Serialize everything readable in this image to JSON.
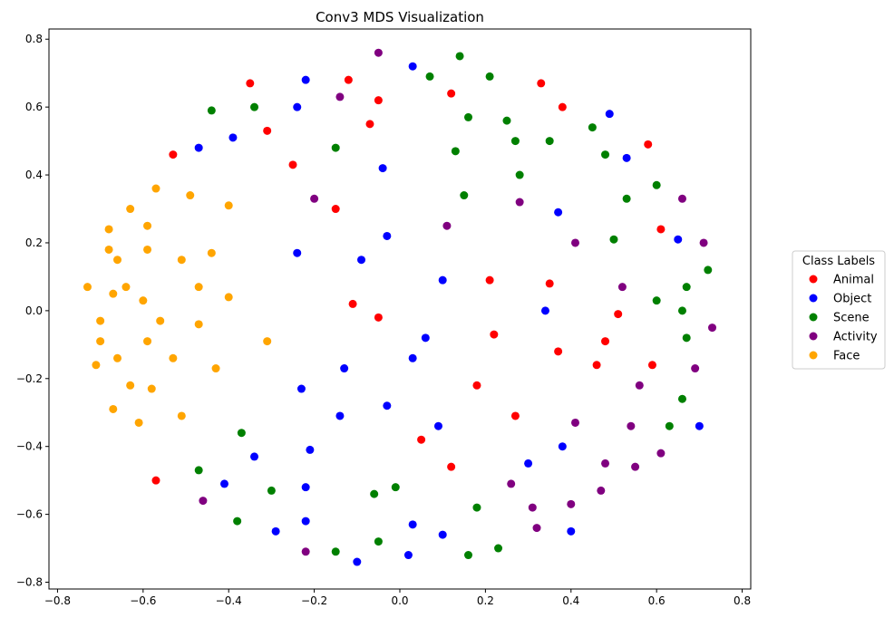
{
  "chart_data": {
    "type": "scatter",
    "title": "Conv3 MDS Visualization",
    "xlabel": "",
    "ylabel": "",
    "xlim": [
      -0.82,
      0.82
    ],
    "ylim": [
      -0.82,
      0.83
    ],
    "xticks": [
      "−0.8",
      "−0.6",
      "−0.4",
      "−0.2",
      "0.0",
      "0.2",
      "0.4",
      "0.6",
      "0.8"
    ],
    "xtick_values": [
      -0.8,
      -0.6,
      -0.4,
      -0.2,
      0.0,
      0.2,
      0.4,
      0.6,
      0.8
    ],
    "yticks": [
      "−0.8",
      "−0.6",
      "−0.4",
      "−0.2",
      "0.0",
      "0.2",
      "0.4",
      "0.6",
      "0.8"
    ],
    "ytick_values": [
      -0.8,
      -0.6,
      -0.4,
      -0.2,
      0.0,
      0.2,
      0.4,
      0.6,
      0.8
    ],
    "grid": false,
    "legend": {
      "title": "Class Labels",
      "placement": "outside-right"
    },
    "series": [
      {
        "name": "Animal",
        "color": "#ff0000",
        "points": [
          [
            -0.35,
            0.67
          ],
          [
            -0.12,
            0.68
          ],
          [
            -0.05,
            0.62
          ],
          [
            0.12,
            0.64
          ],
          [
            0.33,
            0.67
          ],
          [
            0.38,
            0.6
          ],
          [
            -0.31,
            0.53
          ],
          [
            -0.07,
            0.55
          ],
          [
            -0.53,
            0.46
          ],
          [
            -0.25,
            0.43
          ],
          [
            0.58,
            0.49
          ],
          [
            -0.15,
            0.3
          ],
          [
            0.61,
            0.24
          ],
          [
            -0.11,
            0.02
          ],
          [
            0.21,
            0.09
          ],
          [
            0.35,
            0.08
          ],
          [
            -0.05,
            -0.02
          ],
          [
            0.51,
            -0.01
          ],
          [
            0.22,
            -0.07
          ],
          [
            0.48,
            -0.09
          ],
          [
            0.37,
            -0.12
          ],
          [
            0.46,
            -0.16
          ],
          [
            0.59,
            -0.16
          ],
          [
            0.18,
            -0.22
          ],
          [
            0.27,
            -0.31
          ],
          [
            0.05,
            -0.38
          ],
          [
            0.12,
            -0.46
          ],
          [
            -0.57,
            -0.5
          ]
        ]
      },
      {
        "name": "Object",
        "color": "#0000ff",
        "points": [
          [
            -0.22,
            0.68
          ],
          [
            0.03,
            0.72
          ],
          [
            -0.24,
            0.6
          ],
          [
            0.49,
            0.58
          ],
          [
            -0.47,
            0.48
          ],
          [
            -0.39,
            0.51
          ],
          [
            0.53,
            0.45
          ],
          [
            -0.04,
            0.42
          ],
          [
            0.37,
            0.29
          ],
          [
            -0.03,
            0.22
          ],
          [
            0.65,
            0.21
          ],
          [
            -0.24,
            0.17
          ],
          [
            -0.09,
            0.15
          ],
          [
            0.1,
            0.09
          ],
          [
            0.34,
            0.0
          ],
          [
            0.06,
            -0.08
          ],
          [
            0.03,
            -0.14
          ],
          [
            -0.13,
            -0.17
          ],
          [
            -0.23,
            -0.23
          ],
          [
            -0.03,
            -0.28
          ],
          [
            -0.14,
            -0.31
          ],
          [
            0.09,
            -0.34
          ],
          [
            0.7,
            -0.34
          ],
          [
            0.38,
            -0.4
          ],
          [
            -0.21,
            -0.41
          ],
          [
            -0.34,
            -0.43
          ],
          [
            0.3,
            -0.45
          ],
          [
            -0.41,
            -0.51
          ],
          [
            -0.22,
            -0.52
          ],
          [
            0.03,
            -0.63
          ],
          [
            -0.22,
            -0.62
          ],
          [
            -0.29,
            -0.65
          ],
          [
            0.1,
            -0.66
          ],
          [
            0.4,
            -0.65
          ],
          [
            0.02,
            -0.72
          ],
          [
            -0.1,
            -0.74
          ]
        ]
      },
      {
        "name": "Scene",
        "color": "#008000",
        "points": [
          [
            0.14,
            0.75
          ],
          [
            0.07,
            0.69
          ],
          [
            0.21,
            0.69
          ],
          [
            -0.44,
            0.59
          ],
          [
            -0.34,
            0.6
          ],
          [
            0.16,
            0.57
          ],
          [
            0.25,
            0.56
          ],
          [
            0.45,
            0.54
          ],
          [
            0.27,
            0.5
          ],
          [
            0.35,
            0.5
          ],
          [
            -0.15,
            0.48
          ],
          [
            0.13,
            0.47
          ],
          [
            0.48,
            0.46
          ],
          [
            0.28,
            0.4
          ],
          [
            0.6,
            0.37
          ],
          [
            0.15,
            0.34
          ],
          [
            0.53,
            0.33
          ],
          [
            0.5,
            0.21
          ],
          [
            0.72,
            0.12
          ],
          [
            0.67,
            0.07
          ],
          [
            0.6,
            0.03
          ],
          [
            0.66,
            0.0
          ],
          [
            0.67,
            -0.08
          ],
          [
            0.66,
            -0.26
          ],
          [
            -0.37,
            -0.36
          ],
          [
            0.63,
            -0.34
          ],
          [
            -0.47,
            -0.47
          ],
          [
            -0.3,
            -0.53
          ],
          [
            -0.06,
            -0.54
          ],
          [
            -0.01,
            -0.52
          ],
          [
            0.18,
            -0.58
          ],
          [
            -0.38,
            -0.62
          ],
          [
            0.23,
            -0.7
          ],
          [
            -0.05,
            -0.68
          ],
          [
            -0.15,
            -0.71
          ],
          [
            0.16,
            -0.72
          ]
        ]
      },
      {
        "name": "Activity",
        "color": "#800080",
        "points": [
          [
            -0.05,
            0.76
          ],
          [
            -0.14,
            0.63
          ],
          [
            -0.2,
            0.33
          ],
          [
            0.28,
            0.32
          ],
          [
            0.66,
            0.33
          ],
          [
            0.11,
            0.25
          ],
          [
            0.41,
            0.2
          ],
          [
            0.71,
            0.2
          ],
          [
            0.52,
            0.07
          ],
          [
            0.73,
            -0.05
          ],
          [
            0.69,
            -0.17
          ],
          [
            0.56,
            -0.22
          ],
          [
            0.41,
            -0.33
          ],
          [
            0.54,
            -0.34
          ],
          [
            0.61,
            -0.42
          ],
          [
            0.48,
            -0.45
          ],
          [
            0.55,
            -0.46
          ],
          [
            0.26,
            -0.51
          ],
          [
            0.47,
            -0.53
          ],
          [
            -0.46,
            -0.56
          ],
          [
            0.31,
            -0.58
          ],
          [
            0.4,
            -0.57
          ],
          [
            0.32,
            -0.64
          ],
          [
            -0.22,
            -0.71
          ]
        ]
      },
      {
        "name": "Face",
        "color": "#ffa500",
        "points": [
          [
            -0.57,
            0.36
          ],
          [
            -0.49,
            0.34
          ],
          [
            -0.4,
            0.31
          ],
          [
            -0.63,
            0.3
          ],
          [
            -0.68,
            0.24
          ],
          [
            -0.59,
            0.25
          ],
          [
            -0.68,
            0.18
          ],
          [
            -0.59,
            0.18
          ],
          [
            -0.44,
            0.17
          ],
          [
            -0.66,
            0.15
          ],
          [
            -0.51,
            0.15
          ],
          [
            -0.73,
            0.07
          ],
          [
            -0.64,
            0.07
          ],
          [
            -0.47,
            0.07
          ],
          [
            -0.67,
            0.05
          ],
          [
            -0.6,
            0.03
          ],
          [
            -0.4,
            0.04
          ],
          [
            -0.7,
            -0.03
          ],
          [
            -0.56,
            -0.03
          ],
          [
            -0.47,
            -0.04
          ],
          [
            -0.7,
            -0.09
          ],
          [
            -0.59,
            -0.09
          ],
          [
            -0.31,
            -0.09
          ],
          [
            -0.66,
            -0.14
          ],
          [
            -0.53,
            -0.14
          ],
          [
            -0.71,
            -0.16
          ],
          [
            -0.43,
            -0.17
          ],
          [
            -0.63,
            -0.22
          ],
          [
            -0.58,
            -0.23
          ],
          [
            -0.67,
            -0.29
          ],
          [
            -0.51,
            -0.31
          ],
          [
            -0.61,
            -0.33
          ]
        ]
      }
    ]
  }
}
